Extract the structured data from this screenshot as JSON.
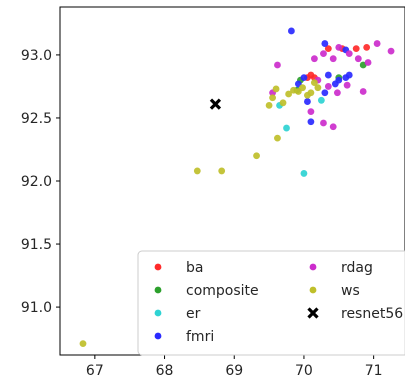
{
  "chart_data": {
    "type": "scatter",
    "title": "",
    "xlabel": "",
    "ylabel": "",
    "xlim": [
      66.5,
      71.45
    ],
    "ylim": [
      90.62,
      93.38
    ],
    "x_ticks": [
      67,
      68,
      69,
      70,
      71
    ],
    "y_ticks": [
      91.0,
      91.5,
      92.0,
      92.5,
      93.0
    ],
    "x_tick_labels": [
      "67",
      "68",
      "69",
      "70",
      "71"
    ],
    "y_tick_labels": [
      "91.0",
      "91.5",
      "92.0",
      "92.5",
      "93.0"
    ],
    "grid": false,
    "legend_placement": "lower-right",
    "legend_columns": 2,
    "series": [
      {
        "name": "ba",
        "color": "#ff2a2a",
        "marker": "circle",
        "points": [
          [
            70.05,
            92.82
          ],
          [
            70.1,
            92.84
          ],
          [
            70.15,
            92.82
          ],
          [
            70.35,
            93.05
          ],
          [
            70.55,
            93.05
          ],
          [
            70.75,
            93.05
          ],
          [
            70.9,
            93.06
          ]
        ]
      },
      {
        "name": "composite",
        "color": "#2ca02c",
        "marker": "circle",
        "points": [
          [
            69.95,
            92.8
          ],
          [
            70.5,
            92.82
          ],
          [
            70.85,
            92.92
          ],
          [
            69.9,
            92.72
          ]
        ]
      },
      {
        "name": "er",
        "color": "#2ed3d3",
        "marker": "circle",
        "points": [
          [
            69.75,
            92.42
          ],
          [
            70.0,
            92.06
          ],
          [
            70.25,
            92.64
          ],
          [
            69.65,
            92.6
          ]
        ]
      },
      {
        "name": "fmri",
        "color": "#2a2aff",
        "marker": "circle",
        "points": [
          [
            69.82,
            93.19
          ],
          [
            70.3,
            93.09
          ],
          [
            70.6,
            93.04
          ],
          [
            69.92,
            92.77
          ],
          [
            70.05,
            92.63
          ],
          [
            70.1,
            92.47
          ],
          [
            70.35,
            92.84
          ],
          [
            70.5,
            92.8
          ],
          [
            70.65,
            92.84
          ],
          [
            70.3,
            92.7
          ],
          [
            70.45,
            92.77
          ],
          [
            70.6,
            92.82
          ],
          [
            70.0,
            92.82
          ]
        ]
      },
      {
        "name": "rdag",
        "color": "#cc2ccc",
        "marker": "circle",
        "points": [
          [
            69.62,
            92.92
          ],
          [
            70.15,
            92.97
          ],
          [
            70.28,
            93.01
          ],
          [
            70.42,
            92.97
          ],
          [
            70.5,
            93.06
          ],
          [
            70.65,
            93.01
          ],
          [
            70.78,
            92.97
          ],
          [
            70.92,
            92.94
          ],
          [
            71.05,
            93.09
          ],
          [
            71.25,
            93.03
          ],
          [
            70.2,
            92.8
          ],
          [
            70.35,
            92.75
          ],
          [
            70.48,
            92.7
          ],
          [
            70.62,
            92.76
          ],
          [
            70.85,
            92.71
          ],
          [
            70.28,
            92.46
          ],
          [
            70.42,
            92.43
          ],
          [
            69.55,
            92.7
          ],
          [
            70.1,
            92.55
          ]
        ]
      },
      {
        "name": "ws",
        "color": "#bfbf2a",
        "marker": "circle",
        "points": [
          [
            66.83,
            90.71
          ],
          [
            68.47,
            92.08
          ],
          [
            68.82,
            92.08
          ],
          [
            69.32,
            92.2
          ],
          [
            69.62,
            92.34
          ],
          [
            69.5,
            92.6
          ],
          [
            69.55,
            92.66
          ],
          [
            69.6,
            92.73
          ],
          [
            69.7,
            92.62
          ],
          [
            69.78,
            92.69
          ],
          [
            69.85,
            92.72
          ],
          [
            69.92,
            92.71
          ],
          [
            70.05,
            92.68
          ],
          [
            70.15,
            92.78
          ],
          [
            70.2,
            92.74
          ],
          [
            70.1,
            92.7
          ],
          [
            69.98,
            92.74
          ]
        ]
      },
      {
        "name": "resnet56",
        "color": "#000000",
        "marker": "x",
        "points": [
          [
            68.73,
            92.61
          ]
        ]
      }
    ]
  }
}
